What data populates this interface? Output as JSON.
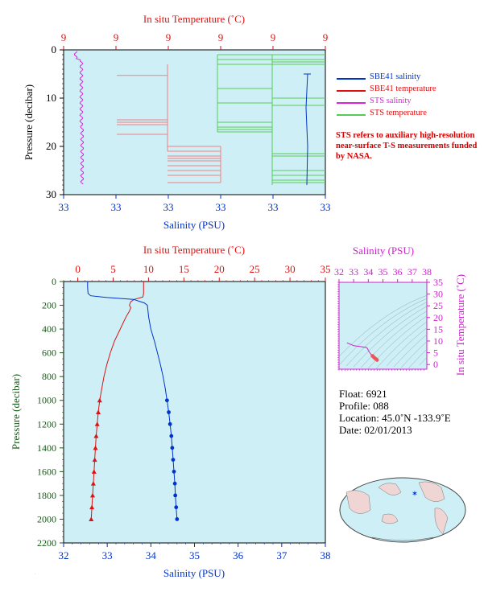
{
  "colors": {
    "salinity": "#0033cc",
    "temperature": "#dd1111",
    "sts_salinity": "#dd22dd",
    "sts_temperature": "#55cc55",
    "plot_bg": "#cfeff7",
    "ts_axis": "#cc22cc",
    "pressure_axis": "#1a5a1a"
  },
  "top_chart": {
    "title": "In situ Temperature (˚C)",
    "temp_ticks": [
      "9",
      "9",
      "9",
      "9",
      "9",
      "9"
    ],
    "sal_ticks": [
      "33",
      "33",
      "33",
      "33",
      "33",
      "33"
    ],
    "xlabel": "Salinity (PSU)",
    "ylabel": "Pressure (decibar)",
    "p_ticks": [
      "0",
      "10",
      "20",
      "30"
    ]
  },
  "legend": {
    "items": [
      {
        "label": "SBE41 salinity",
        "color": "#0033cc"
      },
      {
        "label": "SBE41 temperature",
        "color": "#dd1111"
      },
      {
        "label": "STS salinity",
        "color": "#dd22dd"
      },
      {
        "label": "STS temperature",
        "color": "#55cc55"
      }
    ],
    "note": "STS refers to auxiliary high-resolution near-surface T-S measurements funded by NASA."
  },
  "main_chart": {
    "title": "In situ Temperature (˚C)",
    "temp_ticks": [
      "0",
      "5",
      "10",
      "15",
      "20",
      "25",
      "30",
      "35"
    ],
    "sal_ticks": [
      "32",
      "33",
      "34",
      "35",
      "36",
      "37",
      "38"
    ],
    "p_ticks": [
      "0",
      "200",
      "400",
      "600",
      "800",
      "1000",
      "1200",
      "1400",
      "1600",
      "1800",
      "2000",
      "2200"
    ],
    "xlabel": "Salinity (PSU)",
    "ylabel": "Pressure (decibar)"
  },
  "ts_chart": {
    "title": "Salinity (PSU)",
    "sal_ticks": [
      "32",
      "33",
      "34",
      "35",
      "36",
      "37",
      "38"
    ],
    "temp_ticks": [
      "0",
      "5",
      "10",
      "15",
      "20",
      "25",
      "30",
      "35"
    ],
    "ylabel": "In situ Temperature (˚C)"
  },
  "info": {
    "float": "Float:  6921",
    "profile": "Profile:  088",
    "location": "Location:  45.0˚N  -133.9˚E",
    "date": "Date:  02/01/2013"
  },
  "chart_data": [
    {
      "type": "line",
      "title": "In situ Temperature (˚C)",
      "xlabel": "Salinity (PSU)",
      "ylabel": "Pressure (decibar)",
      "ylim": [
        0,
        2200
      ],
      "x_salinity_lim": [
        32,
        38
      ],
      "x_temperature_lim": [
        -2,
        35
      ],
      "series": [
        {
          "name": "SBE41 temperature",
          "axis": "temperature",
          "points": [
            [
              9.3,
              0
            ],
            [
              9.3,
              50
            ],
            [
              9.3,
              100
            ],
            [
              9.2,
              130
            ],
            [
              8.0,
              150
            ],
            [
              7.5,
              170
            ],
            [
              7.3,
              200
            ],
            [
              7.5,
              220
            ],
            [
              7.3,
              250
            ],
            [
              6.8,
              300
            ],
            [
              6.0,
              400
            ],
            [
              5.2,
              500
            ],
            [
              4.6,
              600
            ],
            [
              4.1,
              700
            ],
            [
              3.7,
              800
            ],
            [
              3.4,
              900
            ],
            [
              3.1,
              1000
            ],
            [
              2.9,
              1100
            ],
            [
              2.75,
              1200
            ],
            [
              2.6,
              1300
            ],
            [
              2.5,
              1400
            ],
            [
              2.4,
              1500
            ],
            [
              2.3,
              1600
            ],
            [
              2.2,
              1700
            ],
            [
              2.1,
              1800
            ],
            [
              2.0,
              1900
            ],
            [
              1.9,
              2000
            ]
          ]
        },
        {
          "name": "SBE41 salinity",
          "axis": "salinity",
          "points": [
            [
              32.55,
              0
            ],
            [
              32.55,
              50
            ],
            [
              32.56,
              100
            ],
            [
              32.62,
              120
            ],
            [
              33.0,
              135
            ],
            [
              33.6,
              150
            ],
            [
              33.85,
              180
            ],
            [
              33.92,
              200
            ],
            [
              33.95,
              300
            ],
            [
              34.0,
              400
            ],
            [
              34.08,
              500
            ],
            [
              34.15,
              600
            ],
            [
              34.22,
              700
            ],
            [
              34.28,
              800
            ],
            [
              34.33,
              900
            ],
            [
              34.37,
              1000
            ],
            [
              34.41,
              1100
            ],
            [
              34.44,
              1200
            ],
            [
              34.47,
              1300
            ],
            [
              34.49,
              1400
            ],
            [
              34.51,
              1500
            ],
            [
              34.53,
              1600
            ],
            [
              34.55,
              1700
            ],
            [
              34.56,
              1800
            ],
            [
              34.58,
              1900
            ],
            [
              34.6,
              2000
            ]
          ]
        }
      ]
    },
    {
      "type": "scatter",
      "title": "Salinity (PSU)",
      "ylabel": "In situ Temperature (˚C)",
      "xlim": [
        32,
        38
      ],
      "ylim": [
        -2,
        35
      ],
      "series": [
        {
          "name": "T-S profile",
          "points": [
            [
              32.55,
              9.3
            ],
            [
              32.56,
              9.2
            ],
            [
              33.0,
              8.0
            ],
            [
              33.6,
              7.5
            ],
            [
              33.85,
              7.3
            ],
            [
              33.95,
              6.8
            ],
            [
              34.0,
              6.0
            ],
            [
              34.08,
              5.2
            ],
            [
              34.15,
              4.6
            ],
            [
              34.22,
              4.1
            ],
            [
              34.28,
              3.7
            ],
            [
              34.33,
              3.4
            ],
            [
              34.37,
              3.1
            ],
            [
              34.44,
              2.75
            ],
            [
              34.5,
              2.45
            ],
            [
              34.55,
              2.2
            ],
            [
              34.6,
              1.9
            ]
          ]
        }
      ]
    }
  ]
}
